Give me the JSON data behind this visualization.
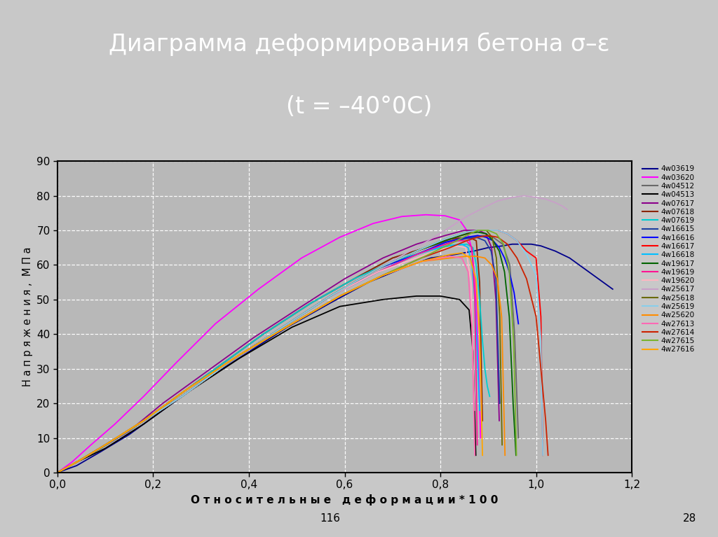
{
  "title_line1": "Диаграмма деформирования бетона σ–ε",
  "title_line2": "(t = –40°0C)",
  "title_bg_color": "#2e6b5e",
  "title_text_color": "#ffffff",
  "bg_color": "#c8c8c8",
  "plot_bg_color": "#b8b8b8",
  "xlabel": "О т н о с и т е л ь н ы е   д е ф о р м а ц и и * 1 0 0",
  "ylabel": "Н а п р я ж е н и я ,  М П а",
  "xlim": [
    0.0,
    1.2
  ],
  "ylim": [
    0,
    90
  ],
  "xticks": [
    0.0,
    0.2,
    0.4,
    0.6,
    0.8,
    1.0,
    1.2
  ],
  "yticks": [
    0,
    10,
    20,
    30,
    40,
    50,
    60,
    70,
    80,
    90
  ],
  "xtick_labels": [
    "0,0",
    "0,2",
    "0,4",
    "0,6",
    "0,8",
    "1,0",
    "1,2"
  ],
  "ytick_labels": [
    "0",
    "10",
    "20",
    "30",
    "40",
    "50",
    "60",
    "70",
    "80",
    "90"
  ],
  "footnote_left": "116",
  "footnote_right": "28",
  "series": [
    {
      "label": "4w03619",
      "color": "#00008b",
      "x": [
        0.0,
        0.04,
        0.09,
        0.15,
        0.22,
        0.3,
        0.39,
        0.48,
        0.57,
        0.65,
        0.72,
        0.78,
        0.83,
        0.87,
        0.9,
        0.93,
        0.95,
        0.97,
        0.99,
        1.01,
        1.04,
        1.07,
        1.1,
        1.13,
        1.16
      ],
      "y": [
        0,
        2,
        6,
        11,
        18,
        26,
        34,
        42,
        49,
        55,
        59,
        62,
        63,
        64,
        65,
        65.5,
        66,
        66,
        66,
        65.5,
        64,
        62,
        59,
        56,
        53
      ]
    },
    {
      "label": "4w03620",
      "color": "#ff00ff",
      "x": [
        0.0,
        0.03,
        0.07,
        0.12,
        0.18,
        0.25,
        0.33,
        0.42,
        0.51,
        0.59,
        0.66,
        0.72,
        0.77,
        0.81,
        0.84,
        0.855,
        0.865,
        0.873,
        0.879,
        0.884
      ],
      "y": [
        0,
        3,
        8,
        14,
        22,
        32,
        43,
        53,
        62,
        68,
        72,
        74,
        74.5,
        74.2,
        73,
        70,
        65,
        55,
        35,
        10
      ]
    },
    {
      "label": "4w04512",
      "color": "#696969",
      "x": [
        0.0,
        0.04,
        0.09,
        0.16,
        0.24,
        0.33,
        0.43,
        0.53,
        0.62,
        0.7,
        0.77,
        0.82,
        0.86,
        0.89,
        0.91,
        0.93,
        0.945,
        0.955,
        0.963
      ],
      "y": [
        0,
        3,
        7,
        13,
        21,
        30,
        40,
        49,
        56,
        62,
        65,
        67,
        68,
        68.5,
        68,
        66,
        60,
        40,
        10
      ]
    },
    {
      "label": "4w04513",
      "color": "#000000",
      "x": [
        0.0,
        0.04,
        0.1,
        0.18,
        0.27,
        0.38,
        0.49,
        0.59,
        0.68,
        0.75,
        0.8,
        0.84,
        0.86,
        0.868,
        0.874
      ],
      "y": [
        0,
        3,
        7,
        14,
        23,
        33,
        42,
        48,
        50,
        51,
        51,
        50,
        47,
        35,
        5
      ]
    },
    {
      "label": "4w07617",
      "color": "#8b008b",
      "x": [
        0.0,
        0.04,
        0.09,
        0.15,
        0.22,
        0.31,
        0.41,
        0.51,
        0.6,
        0.68,
        0.75,
        0.81,
        0.85,
        0.88,
        0.895,
        0.907,
        0.916,
        0.923
      ],
      "y": [
        0,
        3,
        7,
        12,
        20,
        29,
        39,
        48,
        56,
        62,
        66,
        68.5,
        70,
        70,
        69,
        65,
        50,
        15
      ]
    },
    {
      "label": "4w07618",
      "color": "#8b2500",
      "x": [
        0.0,
        0.04,
        0.09,
        0.16,
        0.24,
        0.33,
        0.43,
        0.53,
        0.62,
        0.7,
        0.77,
        0.82,
        0.86,
        0.875,
        0.882,
        0.888
      ],
      "y": [
        0,
        3,
        7,
        13,
        21,
        30,
        40,
        49,
        56,
        62,
        65,
        67.5,
        68,
        67,
        55,
        15
      ]
    },
    {
      "label": "4w07619",
      "color": "#00ced1",
      "x": [
        0.0,
        0.04,
        0.09,
        0.16,
        0.24,
        0.33,
        0.43,
        0.53,
        0.62,
        0.7,
        0.77,
        0.82,
        0.855,
        0.868,
        0.875,
        0.882,
        0.888,
        0.893,
        0.898,
        0.903
      ],
      "y": [
        0,
        3,
        7,
        13,
        21,
        30,
        40,
        49,
        56,
        61,
        64,
        65.5,
        66,
        65,
        60,
        50,
        38,
        30,
        25,
        22
      ]
    },
    {
      "label": "4w16615",
      "color": "#1e3fa0",
      "x": [
        0.0,
        0.04,
        0.1,
        0.17,
        0.26,
        0.36,
        0.47,
        0.57,
        0.67,
        0.75,
        0.81,
        0.85,
        0.875,
        0.893,
        0.906,
        0.916,
        0.924
      ],
      "y": [
        0,
        3,
        8,
        14,
        22,
        32,
        42,
        51,
        58,
        63,
        66,
        67.5,
        68,
        67,
        64,
        56,
        20
      ]
    },
    {
      "label": "4w16616",
      "color": "#0000ff",
      "x": [
        0.0,
        0.04,
        0.1,
        0.17,
        0.26,
        0.36,
        0.47,
        0.57,
        0.67,
        0.75,
        0.81,
        0.855,
        0.878,
        0.895,
        0.91,
        0.923,
        0.934,
        0.944,
        0.954,
        0.963
      ],
      "y": [
        0,
        3,
        8,
        14,
        22,
        32,
        42,
        51,
        59,
        63,
        66.5,
        68,
        68.5,
        68,
        67,
        65,
        62,
        58,
        52,
        43
      ]
    },
    {
      "label": "4w16617",
      "color": "#ff0000",
      "x": [
        0.0,
        0.04,
        0.1,
        0.17,
        0.26,
        0.36,
        0.47,
        0.57,
        0.67,
        0.75,
        0.81,
        0.855,
        0.878,
        0.9,
        0.92,
        0.94,
        0.96,
        0.98,
        1.0,
        1.01,
        1.014
      ],
      "y": [
        0,
        3,
        8,
        14,
        22,
        32,
        42,
        51,
        59,
        64,
        67,
        69,
        70,
        70,
        70,
        69,
        67,
        64,
        62,
        45,
        5
      ]
    },
    {
      "label": "4w16618",
      "color": "#00bfff",
      "x": [
        0.0,
        0.04,
        0.1,
        0.17,
        0.26,
        0.36,
        0.47,
        0.57,
        0.67,
        0.75,
        0.81,
        0.845,
        0.858,
        0.866,
        0.872,
        0.877,
        0.882
      ],
      "y": [
        0,
        3,
        8,
        14,
        22,
        32,
        42,
        51,
        58,
        63,
        65.5,
        66,
        65,
        60,
        50,
        35,
        18
      ]
    },
    {
      "label": "4w19617",
      "color": "#006400",
      "x": [
        0.0,
        0.04,
        0.1,
        0.17,
        0.26,
        0.36,
        0.47,
        0.57,
        0.67,
        0.75,
        0.81,
        0.855,
        0.878,
        0.896,
        0.91,
        0.923,
        0.934,
        0.944,
        0.952,
        0.958
      ],
      "y": [
        0,
        3,
        8,
        14,
        22,
        32,
        42,
        51,
        59,
        64,
        67,
        69,
        69.5,
        69,
        67,
        64,
        58,
        45,
        20,
        5
      ]
    },
    {
      "label": "4w19619",
      "color": "#ff1493",
      "x": [
        0.0,
        0.04,
        0.1,
        0.17,
        0.26,
        0.36,
        0.47,
        0.57,
        0.67,
        0.75,
        0.8,
        0.835,
        0.855,
        0.866,
        0.872,
        0.877
      ],
      "y": [
        0,
        3,
        8,
        14,
        22,
        32,
        42,
        51,
        58,
        63,
        65.5,
        67,
        67,
        65,
        50,
        8
      ]
    },
    {
      "label": "4w19620",
      "color": "#ffb6c1",
      "x": [
        0.0,
        0.04,
        0.1,
        0.17,
        0.26,
        0.36,
        0.47,
        0.57,
        0.67,
        0.75,
        0.8,
        0.835,
        0.853,
        0.864,
        0.871
      ],
      "y": [
        0,
        3,
        8,
        14,
        22,
        32,
        42,
        51,
        58,
        62,
        64.5,
        65.5,
        65,
        55,
        18
      ]
    },
    {
      "label": "4w25617",
      "color": "#c8a0c8",
      "x": [
        0.0,
        0.04,
        0.1,
        0.17,
        0.26,
        0.36,
        0.47,
        0.57,
        0.67,
        0.75,
        0.81,
        0.855,
        0.89,
        0.92,
        0.95,
        0.975,
        1.0,
        1.02,
        1.04,
        1.055,
        1.065
      ],
      "y": [
        0,
        3,
        8,
        14,
        22,
        32,
        42,
        51,
        59,
        65,
        70,
        74,
        76.5,
        78.5,
        79.5,
        80,
        79.5,
        79,
        78,
        77,
        76
      ]
    },
    {
      "label": "4w25618",
      "color": "#6b6b00",
      "x": [
        0.0,
        0.04,
        0.1,
        0.17,
        0.26,
        0.36,
        0.47,
        0.57,
        0.67,
        0.75,
        0.81,
        0.855,
        0.878,
        0.896,
        0.908,
        0.917,
        0.924,
        0.929
      ],
      "y": [
        0,
        3,
        8,
        14,
        22,
        32,
        42,
        51,
        59,
        64,
        67.5,
        69.5,
        70,
        70,
        68,
        62,
        45,
        8
      ]
    },
    {
      "label": "4w25619",
      "color": "#87ceeb",
      "x": [
        0.0,
        0.04,
        0.1,
        0.17,
        0.26,
        0.36,
        0.47,
        0.57,
        0.67,
        0.75,
        0.81,
        0.855,
        0.878,
        0.9,
        0.92,
        0.94,
        0.96,
        0.98,
        1.0,
        1.01,
        1.014
      ],
      "y": [
        0,
        3,
        8,
        14,
        22,
        32,
        42,
        51,
        59,
        64,
        67.5,
        69.5,
        70,
        70,
        70,
        69,
        67,
        63,
        57,
        38,
        5
      ]
    },
    {
      "label": "4w25620",
      "color": "#ff8c00",
      "x": [
        0.0,
        0.04,
        0.1,
        0.18,
        0.27,
        0.38,
        0.49,
        0.59,
        0.68,
        0.76,
        0.82,
        0.855,
        0.875,
        0.893,
        0.907,
        0.919,
        0.928,
        0.935
      ],
      "y": [
        0,
        3,
        8,
        15,
        24,
        34,
        43,
        51,
        57,
        61,
        62,
        62.5,
        62.5,
        62,
        60,
        56,
        45,
        5
      ]
    },
    {
      "label": "4w27613",
      "color": "#ff69b4",
      "x": [
        0.0,
        0.04,
        0.1,
        0.18,
        0.27,
        0.38,
        0.49,
        0.59,
        0.68,
        0.76,
        0.82,
        0.845,
        0.858,
        0.866,
        0.872
      ],
      "y": [
        0,
        3,
        8,
        15,
        24,
        34,
        43,
        51,
        57,
        61,
        62.5,
        62,
        58,
        42,
        5
      ]
    },
    {
      "label": "4w27614",
      "color": "#cc2200",
      "x": [
        0.0,
        0.04,
        0.1,
        0.18,
        0.27,
        0.38,
        0.49,
        0.59,
        0.68,
        0.76,
        0.82,
        0.855,
        0.878,
        0.9,
        0.92,
        0.94,
        0.96,
        0.98,
        1.0,
        1.02,
        1.025
      ],
      "y": [
        0,
        3,
        8,
        15,
        24,
        34,
        43,
        51,
        57,
        62,
        65,
        67,
        68,
        68.5,
        68,
        66,
        62,
        56,
        45,
        15,
        5
      ]
    },
    {
      "label": "4w27615",
      "color": "#7ab32e",
      "x": [
        0.0,
        0.04,
        0.1,
        0.18,
        0.27,
        0.38,
        0.49,
        0.59,
        0.68,
        0.76,
        0.82,
        0.855,
        0.878,
        0.9,
        0.917,
        0.932,
        0.944,
        0.953,
        0.959
      ],
      "y": [
        0,
        3,
        8,
        15,
        24,
        34,
        43,
        51,
        57,
        62,
        66,
        68.5,
        70,
        70,
        69,
        66,
        58,
        38,
        5
      ]
    },
    {
      "label": "4w27616",
      "color": "#ffa500",
      "x": [
        0.0,
        0.04,
        0.1,
        0.18,
        0.27,
        0.38,
        0.49,
        0.59,
        0.68,
        0.76,
        0.82,
        0.845,
        0.862,
        0.874,
        0.882,
        0.888
      ],
      "y": [
        0,
        3,
        8,
        15,
        24,
        34,
        43,
        51,
        57,
        61,
        63,
        63.5,
        62,
        56,
        40,
        5
      ]
    }
  ]
}
